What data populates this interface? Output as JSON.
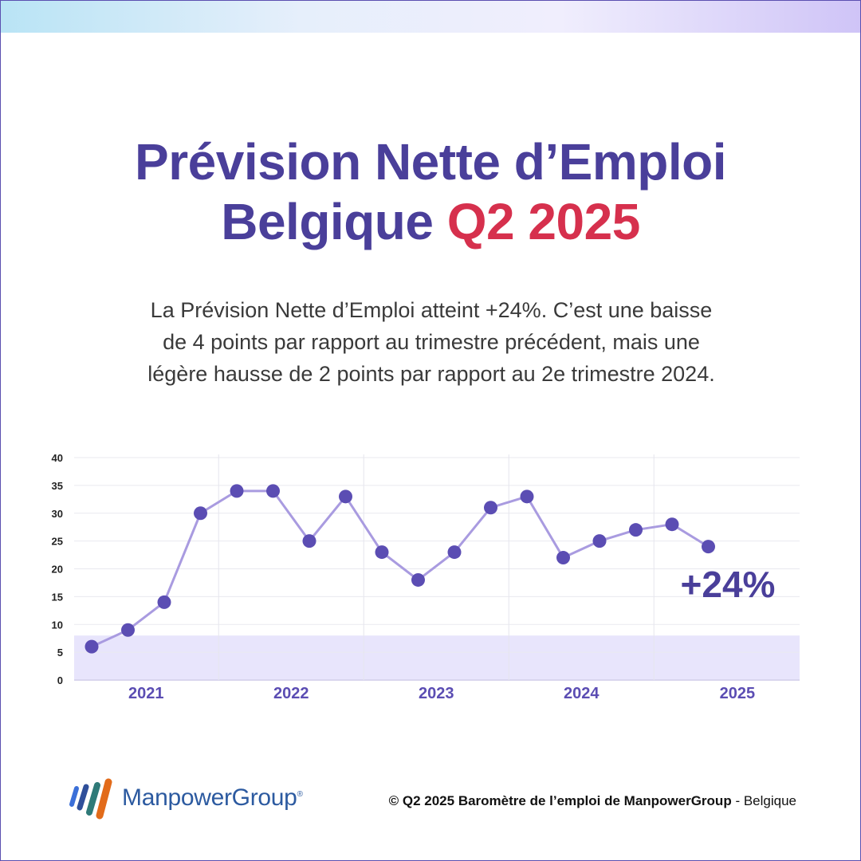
{
  "title": {
    "line1": "Prévision Nette d’Emploi",
    "line2_main": "Belgique",
    "line2_accent": "Q2 2025"
  },
  "subtitle": {
    "line1": "La Prévision Nette d’Emploi atteint +24%. C’est une baisse",
    "line2": "de 4 points par rapport au trimestre précédent, mais une",
    "line3": "légère hausse de 2 points par rapport au 2e trimestre 2024."
  },
  "colors": {
    "title": "#4a3f9a",
    "accent": "#d6304d",
    "line": "#a99be0",
    "marker": "#5b4db3",
    "band": "#e8e5fc"
  },
  "chart_data": {
    "type": "line",
    "ylim": [
      0,
      40
    ],
    "yticks": [
      0,
      5,
      10,
      15,
      20,
      25,
      30,
      35,
      40
    ],
    "year_labels": [
      "2021",
      "2022",
      "2023",
      "2024",
      "2025"
    ],
    "highlight_band": [
      0,
      8
    ],
    "grid": true,
    "series": [
      {
        "values": [
          6,
          9,
          14,
          30,
          34,
          34,
          25,
          33,
          23,
          18,
          23,
          31,
          33,
          22,
          25,
          27,
          28,
          24
        ]
      }
    ],
    "callout": "+24%"
  },
  "logo": {
    "name": "ManpowerGroup",
    "reg": "®"
  },
  "footer": {
    "copyright_bold": "© Q2 2025 Baromètre de l’emploi de ManpowerGroup",
    "copyright_rest": " - Belgique"
  }
}
